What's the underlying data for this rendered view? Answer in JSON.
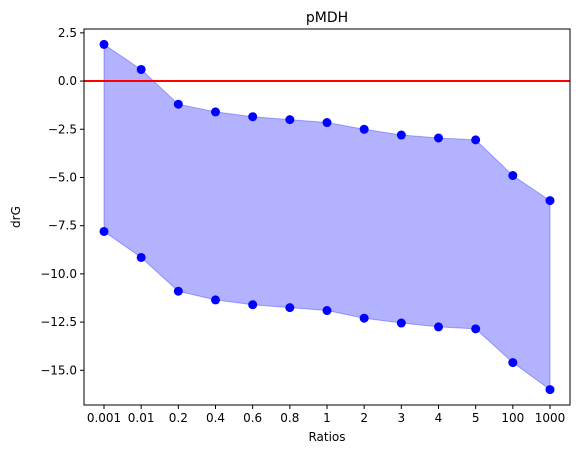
{
  "chart_data": {
    "type": "scatter",
    "title": "pMDH",
    "xlabel": "Ratios",
    "ylabel": "drG",
    "categories": [
      "0.001",
      "0.01",
      "0.2",
      "0.4",
      "0.6",
      "0.8",
      "1",
      "2",
      "3",
      "4",
      "5",
      "100",
      "1000"
    ],
    "series": [
      {
        "values": [
          1.9,
          0.6,
          -1.2,
          -1.6,
          -1.85,
          -2.0,
          -2.15,
          -2.5,
          -2.8,
          -2.95,
          -3.05,
          -4.9,
          -6.2
        ]
      },
      {
        "values": [
          -7.8,
          -9.15,
          -10.9,
          -11.35,
          -11.6,
          -11.75,
          -11.9,
          -12.3,
          -12.55,
          -12.75,
          -12.85,
          -14.6,
          -16.0
        ]
      }
    ],
    "ylim": [
      -16.8,
      2.7
    ],
    "yticks": [
      2.5,
      0.0,
      -2.5,
      -5.0,
      -7.5,
      -10.0,
      -12.5,
      -15.0
    ],
    "ytick_labels": [
      "2.5",
      "0.0",
      "−2.5",
      "−5.0",
      "−7.5",
      "−10.0",
      "−12.5",
      "−15.0"
    ],
    "reference_line": {
      "y": 0,
      "color": "#ff0000"
    },
    "colors": {
      "points": "#0000ff",
      "fill": "#0000ff",
      "fill_opacity": 0.3
    },
    "grid": false,
    "legend": "none"
  }
}
